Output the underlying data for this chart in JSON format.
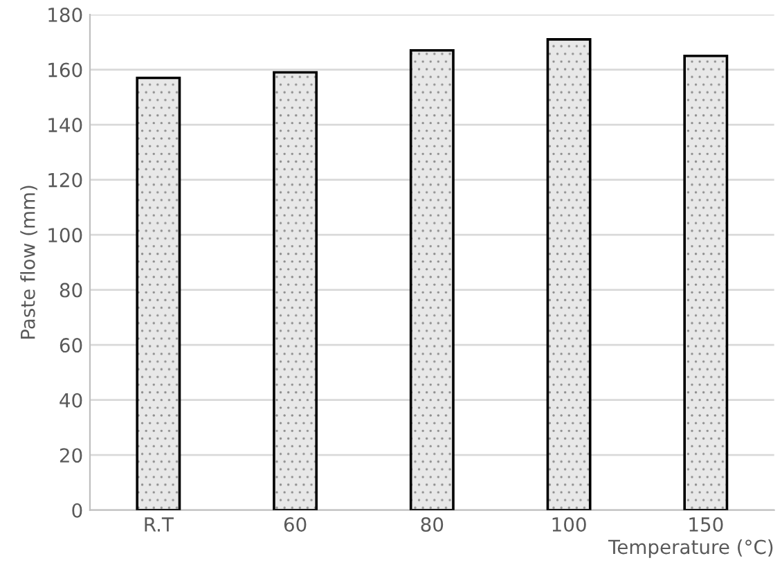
{
  "chart_data": {
    "type": "bar",
    "xlabel": "Temperature (°C)",
    "ylabel": "Paste flow (mm)",
    "categories": [
      "R.T",
      "60",
      "80",
      "100",
      "150"
    ],
    "values": [
      157,
      159,
      167,
      171,
      165
    ],
    "color": "#e8e8e8",
    "ylim": [
      0,
      180
    ],
    "yticks": [
      0,
      20,
      40,
      60,
      80,
      100,
      120,
      140,
      160,
      180
    ],
    "grid": "y"
  }
}
